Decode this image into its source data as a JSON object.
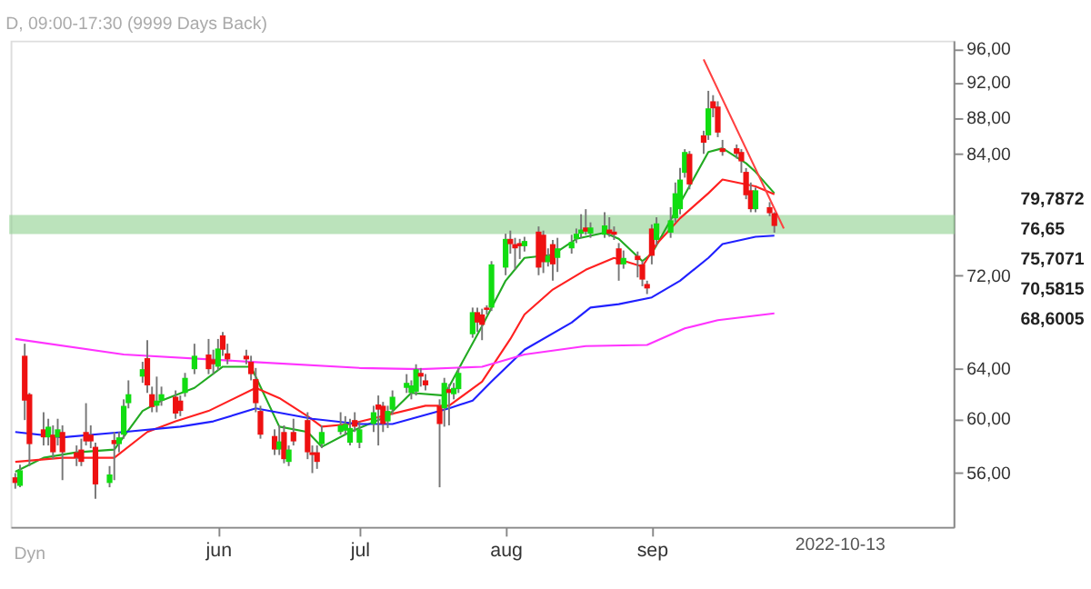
{
  "chart_data": {
    "type": "candlestick",
    "title": "D, 09:00-17:30 (9999 Days Back)",
    "x": [
      "2022-04-19",
      "2022-04-20",
      "2022-04-21",
      "2022-04-22",
      "2022-04-25",
      "2022-04-26",
      "2022-04-27",
      "2022-04-28",
      "2022-04-29",
      "2022-05-02",
      "2022-05-03",
      "2022-05-04",
      "2022-05-05",
      "2022-05-06",
      "2022-05-09",
      "2022-05-10",
      "2022-05-11",
      "2022-05-12",
      "2022-05-13",
      "2022-05-16",
      "2022-05-17",
      "2022-05-18",
      "2022-05-19",
      "2022-05-20",
      "2022-05-23",
      "2022-05-24",
      "2022-05-25",
      "2022-05-27",
      "2022-05-30",
      "2022-05-31",
      "2022-06-01",
      "2022-06-02",
      "2022-06-03",
      "2022-06-07",
      "2022-06-08",
      "2022-06-09",
      "2022-06-10",
      "2022-06-13",
      "2022-06-14",
      "2022-06-15",
      "2022-06-16",
      "2022-06-17",
      "2022-06-20",
      "2022-06-21",
      "2022-06-22",
      "2022-06-23",
      "2022-06-27",
      "2022-06-28",
      "2022-06-29",
      "2022-06-30",
      "2022-07-01",
      "2022-07-04",
      "2022-07-05",
      "2022-07-06",
      "2022-07-07",
      "2022-07-08",
      "2022-07-11",
      "2022-07-12",
      "2022-07-13",
      "2022-07-14",
      "2022-07-15",
      "2022-07-18",
      "2022-07-19",
      "2022-07-20",
      "2022-07-21",
      "2022-07-22",
      "2022-07-25",
      "2022-07-26",
      "2022-07-27",
      "2022-07-28",
      "2022-07-29",
      "2022-08-01",
      "2022-08-02",
      "2022-08-03",
      "2022-08-04",
      "2022-08-05",
      "2022-08-08",
      "2022-08-09",
      "2022-08-10",
      "2022-08-11",
      "2022-08-12",
      "2022-08-15",
      "2022-08-16",
      "2022-08-17",
      "2022-08-18",
      "2022-08-19",
      "2022-08-22",
      "2022-08-23",
      "2022-08-24",
      "2022-08-25",
      "2022-08-26",
      "2022-08-29",
      "2022-08-30",
      "2022-08-31",
      "2022-09-01",
      "2022-09-02",
      "2022-09-05",
      "2022-09-06",
      "2022-09-07",
      "2022-09-08",
      "2022-09-09",
      "2022-09-12",
      "2022-09-13",
      "2022-09-14",
      "2022-09-15",
      "2022-09-16",
      "2022-09-19",
      "2022-09-20",
      "2022-09-21",
      "2022-09-22",
      "2022-09-23",
      "2022-09-26",
      "2022-09-27"
    ],
    "ohlc": [
      [
        55.7,
        56.0,
        54.9,
        55.3
      ],
      [
        55.1,
        56.6,
        55.0,
        56.2
      ],
      [
        65.0,
        66.0,
        59.9,
        61.4
      ],
      [
        61.9,
        62.0,
        56.5,
        58.1
      ],
      [
        59.2,
        60.5,
        58.0,
        58.6
      ],
      [
        58.6,
        60.0,
        58.0,
        59.4
      ],
      [
        58.8,
        59.5,
        57.0,
        57.5
      ],
      [
        58.6,
        60.0,
        58.0,
        59.2
      ],
      [
        59.0,
        59.5,
        55.5,
        57.5
      ],
      [
        57.5,
        58.0,
        56.5,
        57.1
      ],
      [
        57.7,
        58.5,
        56.5,
        56.8
      ],
      [
        59.0,
        61.2,
        58.0,
        58.3
      ],
      [
        58.8,
        59.5,
        57.8,
        58.3
      ],
      [
        57.9,
        58.2,
        54.2,
        55.2
      ],
      [
        55.3,
        56.5,
        55.0,
        55.9
      ],
      [
        58.4,
        59.0,
        55.5,
        58.1
      ],
      [
        58.1,
        59.0,
        57.5,
        58.6
      ],
      [
        58.8,
        61.5,
        58.5,
        61.0
      ],
      [
        61.2,
        63.0,
        60.8,
        61.9
      ],
      [
        63.3,
        64.5,
        62.8,
        63.9
      ],
      [
        64.8,
        66.3,
        62.0,
        62.6
      ],
      [
        61.9,
        62.5,
        60.5,
        60.9
      ],
      [
        61.0,
        63.3,
        60.5,
        61.4
      ],
      [
        61.4,
        62.5,
        61.0,
        61.9
      ],
      [
        61.7,
        62.2,
        60.0,
        60.4
      ],
      [
        61.4,
        61.8,
        60.2,
        60.6
      ],
      [
        62.0,
        63.6,
        61.7,
        63.2
      ],
      [
        63.9,
        66.0,
        63.5,
        65.0
      ],
      [
        65.1,
        66.4,
        63.5,
        63.9
      ],
      [
        64.7,
        65.5,
        63.5,
        64.3
      ],
      [
        64.1,
        66.4,
        63.8,
        65.6
      ],
      [
        66.7,
        67.0,
        65.0,
        65.5
      ],
      [
        65.2,
        66.0,
        64.3,
        64.7
      ],
      [
        65.0,
        65.5,
        64.3,
        64.7
      ],
      [
        64.5,
        65.0,
        63.0,
        63.5
      ],
      [
        63.1,
        64.0,
        60.5,
        61.2
      ],
      [
        60.6,
        61.0,
        58.5,
        58.8
      ],
      [
        58.7,
        59.2,
        57.3,
        57.7
      ],
      [
        57.7,
        59.5,
        57.3,
        58.3
      ],
      [
        59.0,
        59.5,
        56.7,
        57.0
      ],
      [
        56.8,
        58.0,
        56.5,
        57.7
      ],
      [
        59.0,
        60.0,
        58.0,
        58.3
      ],
      [
        59.9,
        60.5,
        57.0,
        57.5
      ],
      [
        57.5,
        58.0,
        56.0,
        57.3
      ],
      [
        57.5,
        58.0,
        56.3,
        56.8
      ],
      [
        58.1,
        59.5,
        57.8,
        59.0
      ],
      [
        59.0,
        60.5,
        58.8,
        59.5
      ],
      [
        59.1,
        60.2,
        58.8,
        59.6
      ],
      [
        58.2,
        60.0,
        58.0,
        59.3
      ],
      [
        59.9,
        60.5,
        59.0,
        59.4
      ],
      [
        58.2,
        59.8,
        57.8,
        59.2
      ],
      [
        59.6,
        61.0,
        59.0,
        60.5
      ],
      [
        61.1,
        61.8,
        58.0,
        60.7
      ],
      [
        61.0,
        61.3,
        59.0,
        59.6
      ],
      [
        59.8,
        61.0,
        59.3,
        60.6
      ],
      [
        60.7,
        62.2,
        60.3,
        61.7
      ],
      [
        62.4,
        63.5,
        62.0,
        62.8
      ],
      [
        62.0,
        63.0,
        61.5,
        62.6
      ],
      [
        62.1,
        64.3,
        61.8,
        63.9
      ],
      [
        63.6,
        64.0,
        62.5,
        63.3
      ],
      [
        63.0,
        63.5,
        62.2,
        62.6
      ],
      [
        61.0,
        61.5,
        55.0,
        59.6
      ],
      [
        60.8,
        63.2,
        59.4,
        62.8
      ],
      [
        62.3,
        62.7,
        59.5,
        62.0
      ],
      [
        61.9,
        62.8,
        61.5,
        62.4
      ],
      [
        62.3,
        64.0,
        62.0,
        63.6
      ],
      [
        66.8,
        69.1,
        66.5,
        68.7
      ],
      [
        68.7,
        69.1,
        67.0,
        67.8
      ],
      [
        68.5,
        69.0,
        66.3,
        67.6
      ],
      [
        69.1,
        69.3,
        68.5,
        68.9
      ],
      [
        69.1,
        73.3,
        68.8,
        73.0
      ],
      [
        72.7,
        75.9,
        72.0,
        75.4
      ],
      [
        75.4,
        76.2,
        74.0,
        74.9
      ],
      [
        74.9,
        75.5,
        72.5,
        74.5
      ],
      [
        75.0,
        75.4,
        73.5,
        74.7
      ],
      [
        74.7,
        75.6,
        74.2,
        75.2
      ],
      [
        76.1,
        76.6,
        72.0,
        72.7
      ],
      [
        75.8,
        76.2,
        72.2,
        73.2
      ],
      [
        73.2,
        74.5,
        72.8,
        73.8
      ],
      [
        74.9,
        75.3,
        71.5,
        73.0
      ],
      [
        73.6,
        75.5,
        72.3,
        74.5
      ],
      [
        74.5,
        75.8,
        74.0,
        75.1
      ],
      [
        75.4,
        76.4,
        75.0,
        75.9
      ],
      [
        75.9,
        77.8,
        75.5,
        76.3
      ],
      [
        76.5,
        78.3,
        75.8,
        76.1
      ],
      [
        75.9,
        77.0,
        75.5,
        76.5
      ],
      [
        75.8,
        78.0,
        75.5,
        76.7
      ],
      [
        76.3,
        77.5,
        75.6,
        75.9
      ],
      [
        76.1,
        76.6,
        75.3,
        75.8
      ],
      [
        74.5,
        75.0,
        71.5,
        73.0
      ],
      [
        73.0,
        74.3,
        72.6,
        73.6
      ],
      [
        73.8,
        74.2,
        71.8,
        73.4
      ],
      [
        73.0,
        73.3,
        71.0,
        71.6
      ],
      [
        71.2,
        71.5,
        70.3,
        70.8
      ],
      [
        76.4,
        76.8,
        73.0,
        73.8
      ],
      [
        75.3,
        77.5,
        74.8,
        76.9
      ],
      [
        76.0,
        78.5,
        75.5,
        77.2
      ],
      [
        77.4,
        81.0,
        77.0,
        79.9
      ],
      [
        78.3,
        82.5,
        77.8,
        81.3
      ],
      [
        82.0,
        84.5,
        81.5,
        84.2
      ],
      [
        84.0,
        84.3,
        80.3,
        80.8
      ],
      [
        86.0,
        86.5,
        84.0,
        85.2
      ],
      [
        86.0,
        91.0,
        85.5,
        89.0
      ],
      [
        89.8,
        90.5,
        88.0,
        89.0
      ],
      [
        89.2,
        89.8,
        85.8,
        86.3
      ],
      [
        84.6,
        85.5,
        83.8,
        84.2
      ],
      [
        84.6,
        85.0,
        83.5,
        84.0
      ],
      [
        84.2,
        84.5,
        82.0,
        83.2
      ],
      [
        82.1,
        82.5,
        79.3,
        79.7
      ],
      [
        80.2,
        81.0,
        78.0,
        78.3
      ],
      [
        78.3,
        80.5,
        78.0,
        80.2
      ],
      [
        78.5,
        79.0,
        77.6,
        77.9
      ],
      [
        77.9,
        78.0,
        76.0,
        76.65
      ]
    ],
    "series": [
      {
        "type": "line",
        "color": "#22aa22",
        "x": [
          "2022-04-19",
          "2022-04-25",
          "2022-05-02",
          "2022-05-10",
          "2022-05-16",
          "2022-05-20",
          "2022-05-27",
          "2022-06-02",
          "2022-06-08",
          "2022-06-14",
          "2022-06-20",
          "2022-06-23",
          "2022-06-29",
          "2022-07-07",
          "2022-07-12",
          "2022-07-19",
          "2022-07-22",
          "2022-07-27",
          "2022-08-01",
          "2022-08-05",
          "2022-08-11",
          "2022-08-16",
          "2022-08-22",
          "2022-08-25",
          "2022-08-30",
          "2022-09-01",
          "2022-09-07",
          "2022-09-13",
          "2022-09-16",
          "2022-09-21",
          "2022-09-23",
          "2022-09-27"
        ],
        "values": [
          56.1,
          57.1,
          57.5,
          57.7,
          60.6,
          61.4,
          62.4,
          64.1,
          64.1,
          59.4,
          59.0,
          57.9,
          59.0,
          60.2,
          62.0,
          61.8,
          63.9,
          67.5,
          71.5,
          73.6,
          73.9,
          75.4,
          76.0,
          75.4,
          73.3,
          74.0,
          78.9,
          84.2,
          84.6,
          83.0,
          82.1,
          79.9
        ]
      },
      {
        "type": "line",
        "color": "#ff2020",
        "x": [
          "2022-04-19",
          "2022-04-29",
          "2022-05-10",
          "2022-05-17",
          "2022-05-23",
          "2022-05-30",
          "2022-06-09",
          "2022-06-14",
          "2022-06-20",
          "2022-06-23",
          "2022-06-29",
          "2022-07-15",
          "2022-07-20",
          "2022-07-27",
          "2022-08-02",
          "2022-08-05",
          "2022-08-11",
          "2022-08-18",
          "2022-08-24",
          "2022-08-30",
          "2022-09-02",
          "2022-09-07",
          "2022-09-13",
          "2022-09-16",
          "2022-09-23",
          "2022-09-27"
        ],
        "values": [
          56.8,
          57.1,
          57.1,
          59.0,
          59.8,
          60.6,
          62.4,
          61.6,
          60.2,
          59.4,
          59.6,
          61.0,
          61.0,
          62.9,
          66.4,
          68.5,
          70.7,
          72.5,
          73.6,
          72.8,
          74.9,
          77.4,
          79.9,
          81.3,
          80.6,
          79.79
        ]
      },
      {
        "type": "line",
        "color": "#2020ff",
        "x": [
          "2022-04-19",
          "2022-04-29",
          "2022-05-12",
          "2022-05-24",
          "2022-05-31",
          "2022-06-09",
          "2022-06-15",
          "2022-06-21",
          "2022-07-01",
          "2022-07-08",
          "2022-07-20",
          "2022-07-25",
          "2022-07-29",
          "2022-08-05",
          "2022-08-15",
          "2022-08-19",
          "2022-08-25",
          "2022-09-01",
          "2022-09-07",
          "2022-09-13",
          "2022-09-16",
          "2022-09-23",
          "2022-09-27"
        ],
        "values": [
          59.0,
          58.6,
          59.0,
          59.4,
          59.8,
          60.8,
          60.4,
          60.0,
          59.6,
          59.6,
          60.8,
          61.4,
          62.9,
          65.5,
          67.8,
          69.1,
          69.4,
          70.0,
          71.5,
          73.6,
          74.9,
          75.6,
          75.71
        ]
      },
      {
        "type": "line",
        "color": "#ff33ff",
        "x": [
          "2022-04-19",
          "2022-05-12",
          "2022-06-08",
          "2022-07-01",
          "2022-07-14",
          "2022-07-27",
          "2022-08-05",
          "2022-08-18",
          "2022-08-31",
          "2022-09-08",
          "2022-09-15",
          "2022-09-27"
        ],
        "values": [
          66.4,
          65.1,
          64.5,
          64.0,
          63.9,
          64.1,
          65.1,
          65.8,
          65.9,
          67.3,
          68.0,
          68.6
        ]
      },
      {
        "type": "line",
        "color": "#ff4040",
        "x": [
          "2022-09-12",
          "2022-09-29"
        ],
        "values": [
          94.7,
          76.4
        ]
      }
    ],
    "bands": [
      {
        "axis": "y",
        "from": 76.0,
        "to": 77.6,
        "color": "#8fd18f"
      }
    ],
    "annotations": [
      "79,7872",
      "76,65",
      "75,7071",
      "70,5815",
      "68,6005",
      "2022-10-13",
      "Dyn"
    ],
    "xlim": [
      "2022-04-18",
      "2022-11-04"
    ],
    "xticks": [
      {
        "value": "2022-06-01",
        "label": "jun"
      },
      {
        "value": "2022-07-01",
        "label": "jul"
      },
      {
        "value": "2022-08-01",
        "label": "aug"
      },
      {
        "value": "2022-09-01",
        "label": "sep"
      }
    ],
    "ylim": [
      52.3,
      97.0
    ],
    "yticks": [
      {
        "value": 56,
        "label": "56,00"
      },
      {
        "value": 60,
        "label": "60,00"
      },
      {
        "value": 64,
        "label": "64,00"
      },
      {
        "value": 72,
        "label": "72,00"
      },
      {
        "value": 84,
        "label": "84,00"
      },
      {
        "value": 88,
        "label": "88,00"
      },
      {
        "value": 92,
        "label": "92,00"
      },
      {
        "value": 96,
        "label": "96,00"
      }
    ],
    "log": "y",
    "grid": false
  }
}
